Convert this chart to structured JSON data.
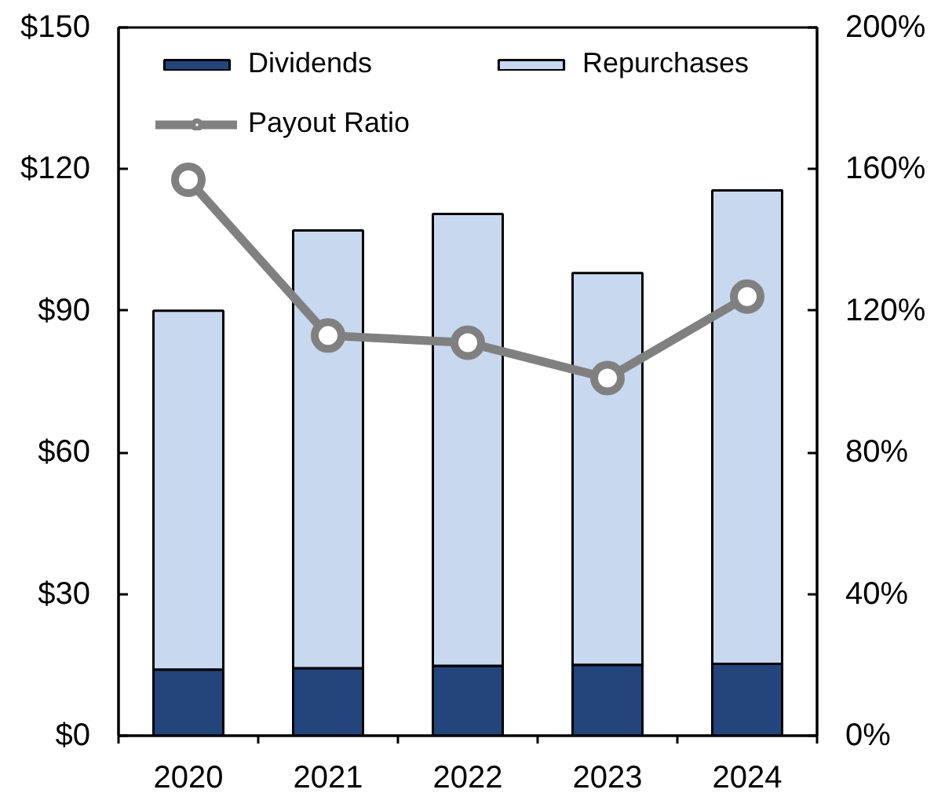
{
  "chart_data": {
    "type": "bar",
    "stacked": true,
    "categories": [
      "2020",
      "2021",
      "2022",
      "2023",
      "2024"
    ],
    "ylim": [
      0,
      150
    ],
    "yticks": [
      {
        "value": 0,
        "label": "$0"
      },
      {
        "value": 30,
        "label": "$30"
      },
      {
        "value": 60,
        "label": "$60"
      },
      {
        "value": 90,
        "label": "$90"
      },
      {
        "value": 120,
        "label": "$120"
      },
      {
        "value": 150,
        "label": "$150"
      }
    ],
    "y2lim": [
      0,
      200
    ],
    "y2ticks": [
      {
        "value": 0,
        "label": "0%"
      },
      {
        "value": 40,
        "label": "40%"
      },
      {
        "value": 80,
        "label": "80%"
      },
      {
        "value": 120,
        "label": "120%"
      },
      {
        "value": 160,
        "label": "160%"
      },
      {
        "value": 200,
        "label": "200%"
      }
    ],
    "grid": false,
    "legend": "top",
    "series": [
      {
        "name": "Dividends",
        "color": "#23457c",
        "values": [
          14,
          14.3,
          14.8,
          15,
          15.2
        ]
      },
      {
        "name": "Repurchases",
        "color": "#c7d8ef",
        "values": [
          76,
          92.7,
          95.7,
          83,
          100.3
        ]
      },
      {
        "name": "Payout Ratio",
        "type": "line",
        "axis": "y2",
        "color": "#808080",
        "marker": "circle",
        "line_style": "solid",
        "values": [
          157,
          113,
          111,
          101,
          124
        ]
      }
    ]
  }
}
